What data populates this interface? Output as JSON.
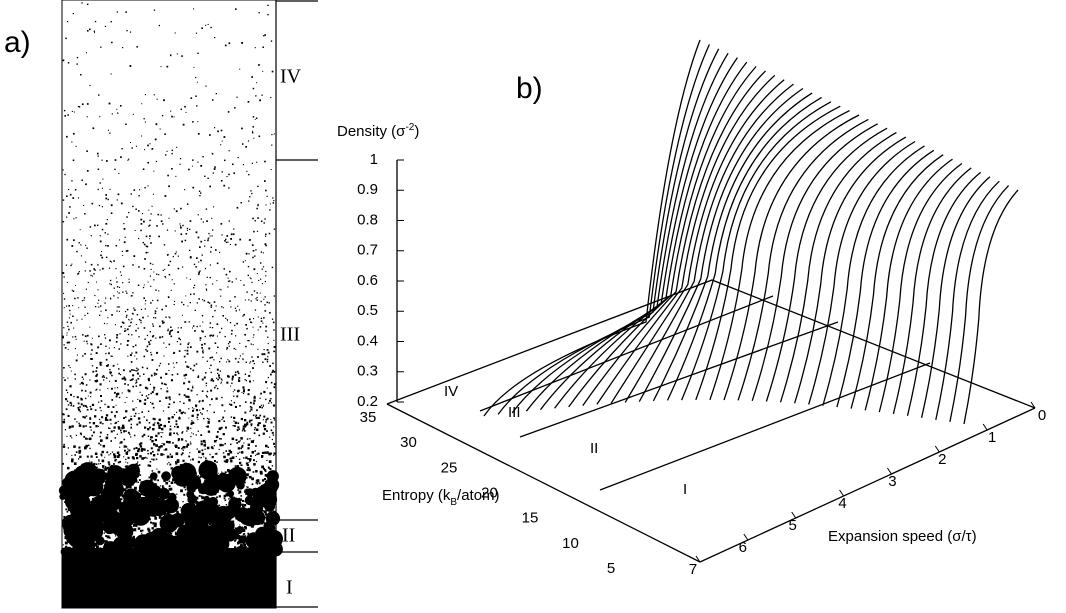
{
  "panel_a": {
    "label": "a)",
    "regions": [
      "IV",
      "III",
      "II",
      "I"
    ]
  },
  "panel_b": {
    "label": "b)",
    "z_axis": {
      "label": [
        "Density (σ",
        "-2",
        ")"
      ],
      "ticks": [
        "1",
        "0.9",
        "0.8",
        "0.7",
        "0.6",
        "0.5",
        "0.4",
        "0.3",
        "0.2"
      ]
    },
    "entropy_axis": {
      "label": [
        "Entropy (k",
        "B",
        "/atom)"
      ],
      "ticks": [
        "35",
        "30",
        "25",
        "20",
        "15",
        "10",
        "5"
      ]
    },
    "speed_axis": {
      "label": "Expansion speed (σ/τ)",
      "ticks": [
        "7",
        "6",
        "5",
        "4",
        "3",
        "2",
        "1",
        "0"
      ]
    },
    "regions": [
      "IV",
      "III",
      "II",
      "I"
    ]
  }
}
